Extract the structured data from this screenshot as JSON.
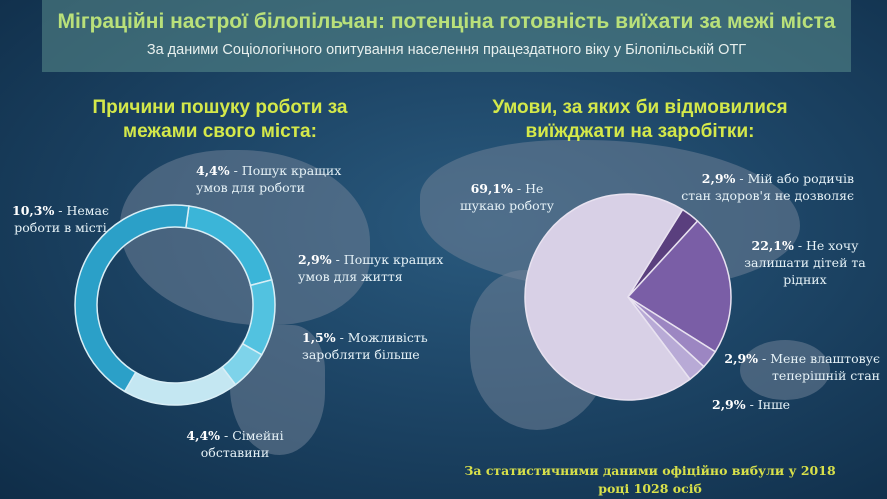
{
  "title": "Міграційні настрої білопільчан: потенціна готовність виїхати за межі міста",
  "subtitle": "За даними Соціологічного опитування населення працездатного віку у Білопільській ОТГ",
  "footer": "За статистичними даними офіційно вибули у 2018 році 1028 осіб",
  "chart_data": [
    {
      "type": "donut",
      "title": "Причини пошуку роботи за межами свого міста:",
      "slices": [
        {
          "pct": "4,4%",
          "text": "Пошук кращих умов для роботи",
          "value": 4.4,
          "color": "#3bb5d8"
        },
        {
          "pct": "2,9%",
          "text": "Пошук кращих умов для життя",
          "value": 2.9,
          "color": "#52c2e0"
        },
        {
          "pct": "1,5%",
          "text": "Можливість заробляти більше",
          "value": 1.5,
          "color": "#7ed3ea"
        },
        {
          "pct": "4,4%",
          "text": "Сімейні обставини",
          "value": 4.4,
          "color": "#c4e7f2"
        },
        {
          "pct": "10,3%",
          "text": "Немає роботи в місті",
          "value": 10.3,
          "color": "#2ba0c8"
        }
      ]
    },
    {
      "type": "pie",
      "title": "Умови, за яких би відмовилися виїжджати на заробітки:",
      "slices": [
        {
          "pct": "2,9%",
          "text": "Мій або родичів стан здоров'я не дозволяє",
          "value": 2.9,
          "color": "#5a3f7e"
        },
        {
          "pct": "22,1%",
          "text": "Не хочу залишати дітей та рідних",
          "value": 22.1,
          "color": "#7a5ea6"
        },
        {
          "pct": "2,9%",
          "text": "Мене влаштовує теперішній стан",
          "value": 2.9,
          "color": "#9c86c2"
        },
        {
          "pct": "2,9%",
          "text": "Інше",
          "value": 2.9,
          "color": "#b8aad6"
        },
        {
          "pct": "69,1%",
          "text": "Не шукаю роботу",
          "value": 69.1,
          "color": "#d8d0e6"
        }
      ]
    }
  ]
}
